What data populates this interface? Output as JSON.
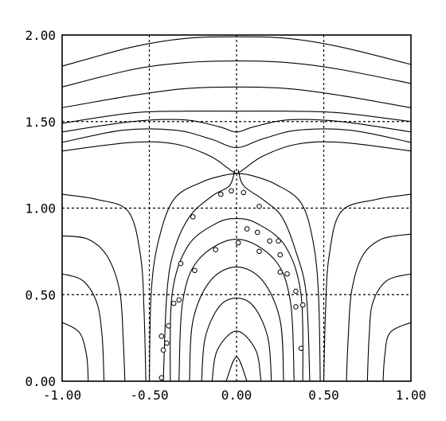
{
  "chart_data": {
    "type": "line",
    "title": "",
    "xlabel": "",
    "ylabel": "",
    "xlim": [
      -1.0,
      1.0
    ],
    "ylim": [
      0.0,
      2.0
    ],
    "grid": true,
    "x_ticks": [
      {
        "value": -1.0,
        "label": "-1.00"
      },
      {
        "value": -0.5,
        "label": "-0.50"
      },
      {
        "value": 0.0,
        "label": "0.00"
      },
      {
        "value": 0.5,
        "label": "0.50"
      },
      {
        "value": 1.0,
        "label": "1.00"
      }
    ],
    "y_ticks": [
      {
        "value": 0.0,
        "label": "0.00"
      },
      {
        "value": 0.5,
        "label": "0.50"
      },
      {
        "value": 1.0,
        "label": "1.00"
      },
      {
        "value": 1.5,
        "label": "1.50"
      },
      {
        "value": 2.0,
        "label": "2.00"
      }
    ],
    "contours": [
      {
        "points": [
          [
            -1.0,
            1.82
          ],
          [
            -0.6,
            1.93
          ],
          [
            -0.3,
            1.98
          ],
          [
            0.0,
            1.99
          ],
          [
            0.3,
            1.98
          ],
          [
            0.6,
            1.93
          ],
          [
            1.0,
            1.83
          ]
        ]
      },
      {
        "points": [
          [
            -1.0,
            1.7
          ],
          [
            -0.6,
            1.8
          ],
          [
            -0.3,
            1.84
          ],
          [
            0.0,
            1.85
          ],
          [
            0.3,
            1.84
          ],
          [
            0.6,
            1.8
          ],
          [
            1.0,
            1.72
          ]
        ]
      },
      {
        "points": [
          [
            -1.0,
            1.58
          ],
          [
            -0.6,
            1.65
          ],
          [
            -0.3,
            1.69
          ],
          [
            0.0,
            1.7
          ],
          [
            0.3,
            1.69
          ],
          [
            0.6,
            1.65
          ],
          [
            1.0,
            1.58
          ]
        ]
      },
      {
        "points": [
          [
            -1.0,
            1.49
          ],
          [
            -0.6,
            1.55
          ],
          [
            -0.3,
            1.56
          ],
          [
            0.0,
            1.56
          ],
          [
            0.3,
            1.56
          ],
          [
            0.6,
            1.55
          ],
          [
            1.0,
            1.5
          ]
        ]
      },
      {
        "points": [
          [
            -1.0,
            1.44
          ],
          [
            -0.6,
            1.5
          ],
          [
            -0.3,
            1.51
          ],
          [
            -0.1,
            1.47
          ],
          [
            0.0,
            1.44
          ],
          [
            0.1,
            1.47
          ],
          [
            0.3,
            1.51
          ],
          [
            0.6,
            1.5
          ],
          [
            1.0,
            1.44
          ]
        ]
      },
      {
        "points": [
          [
            -1.0,
            1.38
          ],
          [
            -0.65,
            1.45
          ],
          [
            -0.35,
            1.45
          ],
          [
            -0.15,
            1.4
          ],
          [
            0.0,
            1.35
          ],
          [
            0.15,
            1.4
          ],
          [
            0.35,
            1.45
          ],
          [
            0.65,
            1.45
          ],
          [
            1.0,
            1.38
          ]
        ]
      },
      {
        "points": [
          [
            -1.0,
            1.33
          ],
          [
            -0.6,
            1.38
          ],
          [
            -0.35,
            1.37
          ],
          [
            -0.15,
            1.3
          ],
          [
            -0.02,
            1.21
          ],
          [
            0.02,
            1.21
          ],
          [
            0.15,
            1.3
          ],
          [
            0.35,
            1.37
          ],
          [
            0.6,
            1.38
          ],
          [
            1.0,
            1.33
          ]
        ]
      },
      {
        "points": [
          [
            -0.01,
            1.22
          ],
          [
            -0.04,
            1.13
          ],
          [
            -0.14,
            1.07
          ],
          [
            -0.27,
            0.95
          ],
          [
            -0.36,
            0.75
          ],
          [
            -0.4,
            0.5
          ],
          [
            -0.42,
            0.0
          ]
        ]
      },
      {
        "points": [
          [
            0.01,
            1.22
          ],
          [
            0.04,
            1.13
          ],
          [
            0.15,
            1.05
          ],
          [
            0.26,
            0.95
          ],
          [
            0.34,
            0.75
          ],
          [
            0.4,
            0.5
          ],
          [
            0.42,
            0.0
          ]
        ]
      },
      {
        "points": [
          [
            -0.38,
            0.0
          ],
          [
            -0.37,
            0.5
          ],
          [
            -0.28,
            0.78
          ],
          [
            -0.12,
            0.91
          ],
          [
            0.0,
            0.94
          ],
          [
            0.12,
            0.91
          ],
          [
            0.28,
            0.78
          ],
          [
            0.37,
            0.5
          ],
          [
            0.38,
            0.0
          ]
        ]
      },
      {
        "points": [
          [
            -0.33,
            0.0
          ],
          [
            -0.31,
            0.45
          ],
          [
            -0.22,
            0.7
          ],
          [
            0.0,
            0.82
          ],
          [
            0.22,
            0.7
          ],
          [
            0.31,
            0.45
          ],
          [
            0.33,
            0.0
          ]
        ]
      },
      {
        "points": [
          [
            -0.27,
            0.0
          ],
          [
            -0.25,
            0.35
          ],
          [
            -0.15,
            0.58
          ],
          [
            0.0,
            0.66
          ],
          [
            0.15,
            0.58
          ],
          [
            0.25,
            0.35
          ],
          [
            0.27,
            0.0
          ]
        ]
      },
      {
        "points": [
          [
            -0.2,
            0.0
          ],
          [
            -0.18,
            0.25
          ],
          [
            -0.1,
            0.43
          ],
          [
            0.0,
            0.48
          ],
          [
            0.1,
            0.43
          ],
          [
            0.18,
            0.25
          ],
          [
            0.2,
            0.0
          ]
        ]
      },
      {
        "points": [
          [
            -0.14,
            0.0
          ],
          [
            -0.11,
            0.18
          ],
          [
            0.0,
            0.29
          ],
          [
            0.11,
            0.18
          ],
          [
            0.14,
            0.0
          ]
        ]
      },
      {
        "points": [
          [
            -0.06,
            0.0
          ],
          [
            0.0,
            0.14
          ],
          [
            0.06,
            0.0
          ]
        ]
      },
      {
        "points": [
          [
            -0.5,
            0.0
          ],
          [
            -0.49,
            0.5
          ],
          [
            -0.45,
            0.8
          ],
          [
            -0.36,
            1.05
          ],
          [
            -0.2,
            1.15
          ],
          [
            -0.07,
            1.19
          ],
          [
            0.0,
            1.2
          ]
        ]
      },
      {
        "points": [
          [
            0.0,
            1.2
          ],
          [
            0.08,
            1.19
          ],
          [
            0.22,
            1.14
          ],
          [
            0.37,
            1.03
          ],
          [
            0.44,
            0.8
          ],
          [
            0.47,
            0.5
          ],
          [
            0.48,
            0.0
          ]
        ]
      },
      {
        "points": [
          [
            -1.0,
            1.08
          ],
          [
            -0.8,
            1.05
          ],
          [
            -0.62,
            0.98
          ],
          [
            -0.55,
            0.72
          ],
          [
            -0.53,
            0.4
          ],
          [
            -0.52,
            0.0
          ]
        ]
      },
      {
        "points": [
          [
            -1.0,
            0.84
          ],
          [
            -0.85,
            0.82
          ],
          [
            -0.74,
            0.72
          ],
          [
            -0.67,
            0.52
          ],
          [
            -0.65,
            0.25
          ],
          [
            -0.64,
            0.0
          ]
        ]
      },
      {
        "points": [
          [
            -1.0,
            0.62
          ],
          [
            -0.88,
            0.58
          ],
          [
            -0.8,
            0.45
          ],
          [
            -0.77,
            0.25
          ],
          [
            -0.76,
            0.0
          ]
        ]
      },
      {
        "points": [
          [
            -1.0,
            0.34
          ],
          [
            -0.9,
            0.28
          ],
          [
            -0.86,
            0.15
          ],
          [
            -0.85,
            0.0
          ]
        ]
      },
      {
        "points": [
          [
            1.0,
            1.08
          ],
          [
            0.8,
            1.05
          ],
          [
            0.6,
            0.98
          ],
          [
            0.53,
            0.72
          ],
          [
            0.51,
            0.4
          ],
          [
            0.5,
            0.0
          ]
        ]
      },
      {
        "points": [
          [
            1.0,
            0.85
          ],
          [
            0.83,
            0.82
          ],
          [
            0.72,
            0.72
          ],
          [
            0.66,
            0.52
          ],
          [
            0.64,
            0.25
          ],
          [
            0.63,
            0.0
          ]
        ]
      },
      {
        "points": [
          [
            1.0,
            0.62
          ],
          [
            0.86,
            0.58
          ],
          [
            0.78,
            0.45
          ],
          [
            0.76,
            0.25
          ],
          [
            0.75,
            0.0
          ]
        ]
      },
      {
        "points": [
          [
            1.0,
            0.34
          ],
          [
            0.88,
            0.28
          ],
          [
            0.85,
            0.15
          ],
          [
            0.84,
            0.0
          ]
        ]
      }
    ],
    "markers": [
      {
        "x": -0.43,
        "y": 0.02
      },
      {
        "x": -0.42,
        "y": 0.18
      },
      {
        "x": -0.43,
        "y": 0.26
      },
      {
        "x": -0.4,
        "y": 0.22
      },
      {
        "x": -0.39,
        "y": 0.32
      },
      {
        "x": -0.36,
        "y": 0.45
      },
      {
        "x": -0.33,
        "y": 0.47
      },
      {
        "x": -0.32,
        "y": 0.68
      },
      {
        "x": -0.24,
        "y": 0.64
      },
      {
        "x": -0.25,
        "y": 0.95
      },
      {
        "x": -0.12,
        "y": 0.76
      },
      {
        "x": -0.09,
        "y": 1.08
      },
      {
        "x": -0.03,
        "y": 1.1
      },
      {
        "x": 0.04,
        "y": 1.09
      },
      {
        "x": 0.13,
        "y": 1.01
      },
      {
        "x": 0.01,
        "y": 0.8
      },
      {
        "x": 0.06,
        "y": 0.88
      },
      {
        "x": 0.12,
        "y": 0.86
      },
      {
        "x": 0.19,
        "y": 0.81
      },
      {
        "x": 0.13,
        "y": 0.75
      },
      {
        "x": 0.24,
        "y": 0.81
      },
      {
        "x": 0.25,
        "y": 0.73
      },
      {
        "x": 0.29,
        "y": 0.62
      },
      {
        "x": 0.25,
        "y": 0.63
      },
      {
        "x": 0.34,
        "y": 0.52
      },
      {
        "x": 0.34,
        "y": 0.43
      },
      {
        "x": 0.38,
        "y": 0.44
      },
      {
        "x": 0.37,
        "y": 0.19
      }
    ]
  }
}
